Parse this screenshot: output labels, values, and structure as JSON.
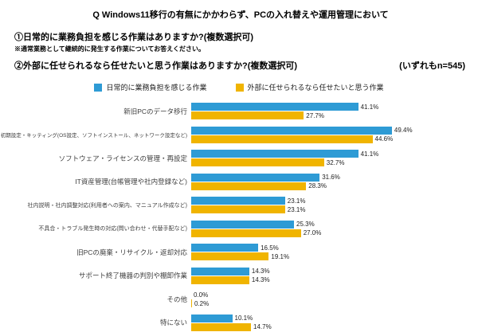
{
  "header": {
    "line1": "Q Windows11移行の有無にかかわらず、PCの入れ替えや運用管理において",
    "line2": "①日常的に業務負担を感じる作業はありますか?(複数選択可)",
    "note": "※通常業務として継続的に発生する作業についてお答えください。",
    "line3": "②外部に任せられるなら任せたいと思う作業はありますか?(複数選択可)",
    "sample_note": "(いずれもn=545)"
  },
  "legend": {
    "items": [
      {
        "label": "日常的に業務負担を感じる作業",
        "color": "#2E9BD5"
      },
      {
        "label": "外部に任せられるなら任せたいと思う作業",
        "color": "#F0B400"
      }
    ]
  },
  "chart_data": {
    "type": "bar",
    "orientation": "horizontal",
    "title": "Q Windows11移行の有無にかかわらず、PCの入れ替えや運用管理において",
    "n": 545,
    "value_suffix": "%",
    "xlim": [
      0,
      55
    ],
    "grid": false,
    "legend_position": "top",
    "categories": [
      "新旧PCのデータ移行",
      "初期設定・キッティング(OS設定、ソフトインストール、ネットワーク設定など)",
      "ソフトウェア・ライセンスの管理・再設定",
      "IT資産管理(台帳管理や社内登録など)",
      "社内説明・社内調整対応(利用者への案内、マニュアル作成など)",
      "不具合・トラブル発生時の対応(問い合わせ・代替手配など)",
      "旧PCの廃棄・リサイクル・返却対応",
      "サポート終了機器の判別や棚卸作業",
      "その他",
      "特にない"
    ],
    "series": [
      {
        "name": "日常的に業務負担を感じる作業",
        "color": "#2E9BD5",
        "values": [
          41.1,
          49.4,
          41.1,
          31.6,
          23.1,
          25.3,
          16.5,
          14.3,
          0.0,
          10.1
        ]
      },
      {
        "name": "外部に任せられるなら任せたいと思う作業",
        "color": "#F0B400",
        "values": [
          27.7,
          44.6,
          32.7,
          28.3,
          23.1,
          27.0,
          19.1,
          14.3,
          0.2,
          14.7
        ]
      }
    ]
  }
}
